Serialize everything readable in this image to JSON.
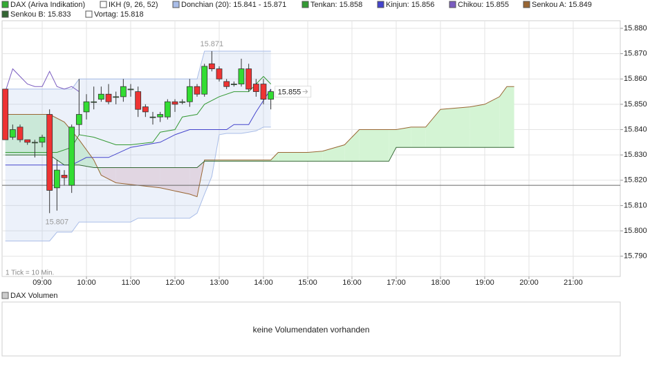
{
  "chart_data": {
    "type": "candlestick",
    "note": "1 Tick = 10 Min.",
    "xlim": [
      485.6,
      1323.8
    ],
    "ylim": [
      15.782,
      15.883
    ],
    "xticks": [
      {
        "value": 540,
        "label": "09:00"
      },
      {
        "value": 600,
        "label": "10:00"
      },
      {
        "value": 660,
        "label": "11:00"
      },
      {
        "value": 720,
        "label": "12:00"
      },
      {
        "value": 780,
        "label": "13:00"
      },
      {
        "value": 840,
        "label": "14:00"
      },
      {
        "value": 900,
        "label": "15:00"
      },
      {
        "value": 960,
        "label": "16:00"
      },
      {
        "value": 1020,
        "label": "17:00"
      },
      {
        "value": 1080,
        "label": "18:00"
      },
      {
        "value": 1140,
        "label": "19:00"
      },
      {
        "value": 1200,
        "label": "20:00"
      },
      {
        "value": 1260,
        "label": "21:00"
      }
    ],
    "yticks": [
      {
        "value": 15.79,
        "label": "15.790"
      },
      {
        "value": 15.8,
        "label": "15.800"
      },
      {
        "value": 15.81,
        "label": "15.810"
      },
      {
        "value": 15.82,
        "label": "15.820"
      },
      {
        "value": 15.83,
        "label": "15.830"
      },
      {
        "value": 15.84,
        "label": "15.840"
      },
      {
        "value": 15.85,
        "label": "15.850"
      },
      {
        "value": 15.86,
        "label": "15.860"
      },
      {
        "value": 15.87,
        "label": "15.870"
      },
      {
        "value": 15.88,
        "label": "15.880"
      }
    ],
    "grid": true,
    "up_color": "#33dd33",
    "down_color": "#ee3333",
    "cloud_colors": {
      "up": "#d4f4d4",
      "down": "#f1dde1"
    },
    "series": [
      {
        "name": "DAX (Ariva Indikation)",
        "color": "#33aa33",
        "x": [
          490,
          500,
          510,
          520,
          530,
          540,
          550,
          560,
          570,
          580,
          590,
          600,
          610,
          620,
          630,
          640,
          650,
          660,
          670,
          680,
          690,
          700,
          710,
          720,
          730,
          740,
          750,
          760,
          770,
          780,
          790,
          800,
          810,
          820,
          830,
          840,
          850
        ],
        "open": [
          15.856,
          15.837,
          15.841,
          15.836,
          15.835,
          15.835,
          15.846,
          15.817,
          15.822,
          15.818,
          15.842,
          15.847,
          15.851,
          15.852,
          15.854,
          15.853,
          15.853,
          15.856,
          15.855,
          15.849,
          15.845,
          15.845,
          15.845,
          15.851,
          15.851,
          15.851,
          15.857,
          15.854,
          15.866,
          15.864,
          15.859,
          15.858,
          15.858,
          15.864,
          15.858,
          15.858,
          15.852
        ],
        "high": [
          15.856,
          15.842,
          15.842,
          15.836,
          15.836,
          15.838,
          15.848,
          15.828,
          15.824,
          15.842,
          15.86,
          15.854,
          15.857,
          15.857,
          15.858,
          15.855,
          15.86,
          15.858,
          15.857,
          15.85,
          15.847,
          15.847,
          15.852,
          15.852,
          15.852,
          15.86,
          15.858,
          15.866,
          15.871,
          15.865,
          15.86,
          15.859,
          15.868,
          15.866,
          15.86,
          15.86,
          15.856
        ],
        "low": [
          15.836,
          15.836,
          15.835,
          15.834,
          15.829,
          15.833,
          15.807,
          15.808,
          15.818,
          15.815,
          15.838,
          15.844,
          15.848,
          15.851,
          15.85,
          15.85,
          15.851,
          15.853,
          15.845,
          15.845,
          15.842,
          15.843,
          15.844,
          15.847,
          15.85,
          15.849,
          15.853,
          15.853,
          15.863,
          15.859,
          15.856,
          15.857,
          15.857,
          15.855,
          15.853,
          15.85,
          15.848
        ],
        "close": [
          15.836,
          15.84,
          15.836,
          15.835,
          15.835,
          15.837,
          15.816,
          15.824,
          15.821,
          15.841,
          15.846,
          15.851,
          15.851,
          15.854,
          15.851,
          15.853,
          15.857,
          15.856,
          15.848,
          15.847,
          15.845,
          15.846,
          15.851,
          15.85,
          15.851,
          15.857,
          15.854,
          15.865,
          15.864,
          15.86,
          15.857,
          15.858,
          15.864,
          15.856,
          15.855,
          15.852,
          15.855
        ]
      },
      {
        "name": "IKH (9, 26, 52)",
        "color": "#ffffff"
      },
      {
        "name": "Donchian (20): 15.841 - 15.871",
        "color": "#a9bde8",
        "x": [
          490,
          500,
          510,
          520,
          530,
          540,
          550,
          560,
          570,
          580,
          590,
          600,
          610,
          620,
          630,
          640,
          650,
          660,
          670,
          680,
          690,
          700,
          710,
          720,
          730,
          740,
          750,
          760,
          770,
          780,
          790,
          800,
          810,
          820,
          830,
          840,
          850
        ],
        "upper": [
          15.856,
          15.856,
          15.856,
          15.856,
          15.856,
          15.856,
          15.856,
          15.856,
          15.856,
          15.856,
          15.86,
          15.86,
          15.86,
          15.86,
          15.86,
          15.86,
          15.86,
          15.86,
          15.86,
          15.86,
          15.86,
          15.86,
          15.86,
          15.86,
          15.86,
          15.86,
          15.86,
          15.871,
          15.871,
          15.871,
          15.871,
          15.871,
          15.871,
          15.871,
          15.871,
          15.871,
          15.871
        ],
        "lower": [
          15.796,
          15.796,
          15.796,
          15.796,
          15.796,
          15.796,
          15.796,
          15.7995,
          15.7995,
          15.7995,
          15.8035,
          15.8035,
          15.8035,
          15.8035,
          15.8035,
          15.8035,
          15.8035,
          15.8035,
          15.805,
          15.805,
          15.805,
          15.805,
          15.805,
          15.805,
          15.805,
          15.805,
          15.807,
          15.8145,
          15.8215,
          15.838,
          15.8385,
          15.8385,
          15.8385,
          15.839,
          15.8395,
          15.841,
          15.841
        ]
      },
      {
        "name": "Tenkan: 15.858",
        "color": "#339933",
        "x": [
          490,
          560,
          580,
          590,
          610,
          640,
          660,
          690,
          700,
          720,
          730,
          750,
          760,
          780,
          800,
          820,
          840,
          850
        ],
        "values": [
          15.831,
          15.831,
          15.833,
          15.838,
          15.837,
          15.834,
          15.834,
          15.835,
          15.839,
          15.84,
          15.845,
          15.846,
          15.85,
          15.853,
          15.855,
          15.855,
          15.861,
          15.858
        ]
      },
      {
        "name": "Kinjun: 15.856",
        "color": "#4444cc",
        "x": [
          490,
          580,
          600,
          630,
          660,
          700,
          720,
          740,
          760,
          790,
          800,
          820,
          830,
          850
        ],
        "values": [
          15.826,
          15.826,
          15.829,
          15.829,
          15.833,
          15.835,
          15.838,
          15.84,
          15.84,
          15.84,
          15.842,
          15.842,
          15.847,
          15.856
        ]
      },
      {
        "name": "Chikou: 15.855",
        "color": "#7a5cc0",
        "x": [
          490,
          500,
          510,
          520,
          530,
          540,
          550,
          560,
          570,
          580,
          590
        ],
        "values": [
          15.855,
          15.864,
          15.861,
          15.858,
          15.857,
          15.857,
          15.863,
          15.857,
          15.856,
          15.857,
          15.855
        ]
      },
      {
        "name": "Senkou A: 15.849",
        "color": "#996633",
        "x": [
          490,
          550,
          570,
          590,
          610,
          620,
          640,
          700,
          740,
          750,
          760,
          850,
          860,
          870,
          900,
          920,
          950,
          970,
          1010,
          1020,
          1040,
          1060,
          1080,
          1120,
          1140,
          1160,
          1170,
          1180
        ],
        "values": [
          15.846,
          15.846,
          15.843,
          15.836,
          15.828,
          15.822,
          15.819,
          15.817,
          15.8145,
          15.8135,
          15.828,
          15.828,
          15.831,
          15.831,
          15.831,
          15.8315,
          15.834,
          15.84,
          15.84,
          15.84,
          15.841,
          15.841,
          15.848,
          15.849,
          15.85,
          15.853,
          15.857,
          15.857
        ]
      },
      {
        "name": "Senkou B: 15.833",
        "color": "#336633",
        "x": [
          490,
          550,
          570,
          590,
          610,
          620,
          640,
          700,
          740,
          750,
          760,
          850,
          860,
          870,
          900,
          920,
          950,
          970,
          1010,
          1020,
          1040,
          1060,
          1080,
          1120,
          1140,
          1160,
          1170,
          1180
        ],
        "values": [
          15.83,
          15.83,
          15.826,
          15.826,
          15.825,
          15.825,
          15.825,
          15.825,
          15.825,
          15.825,
          15.8275,
          15.8275,
          15.8275,
          15.8275,
          15.8275,
          15.8275,
          15.8275,
          15.8275,
          15.8275,
          15.833,
          15.833,
          15.833,
          15.833,
          15.833,
          15.833,
          15.833,
          15.833,
          15.833
        ]
      },
      {
        "name": "Vortag: 15.818",
        "color": "#ffffff",
        "value": 15.818
      }
    ],
    "annotations": [
      {
        "label": "15.871",
        "value": 15.871,
        "x": 770
      },
      {
        "label": "15.807",
        "value": 15.807,
        "x": 560
      },
      {
        "label": "15.855",
        "value": 15.855,
        "x": 850
      }
    ],
    "volume_panel": {
      "title": "DAX Volumen",
      "color": "#cccccc",
      "message": "keine Volumendaten vorhanden"
    }
  }
}
